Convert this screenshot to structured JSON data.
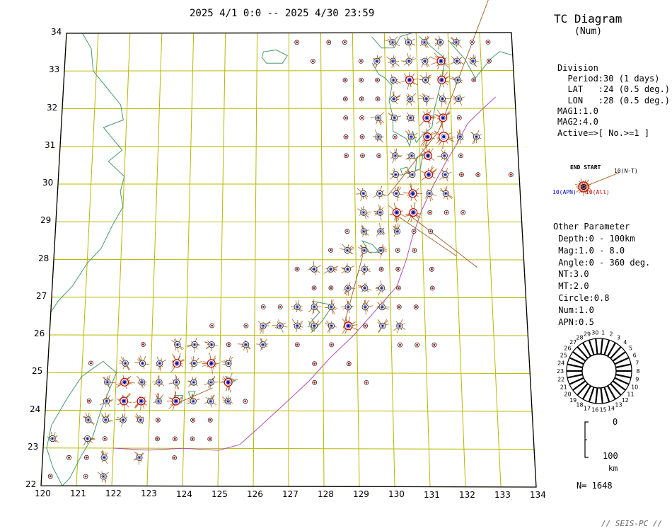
{
  "header": {
    "period": "2025 4/1 0:0 -- 2025 4/30 23:59",
    "title": "TC Diagram",
    "subtitle": "(Num)"
  },
  "map": {
    "lon_range": [
      120,
      134
    ],
    "lat_range": [
      22,
      34
    ],
    "lon_ticks": [
      "120",
      "121",
      "122",
      "123",
      "124",
      "125",
      "126",
      "127",
      "128",
      "129",
      "130",
      "131",
      "132",
      "133",
      "134"
    ],
    "lat_ticks": [
      "22",
      "23",
      "24",
      "25",
      "26",
      "27",
      "28",
      "29",
      "30",
      "31",
      "32",
      "33",
      "34"
    ],
    "grid_color": "#b8b800",
    "coast_color": "#4a9a6a",
    "trench_color": "#b050b0"
  },
  "division": {
    "heading": "Division",
    "lines": [
      "  Period:30 (1 days)",
      "  LAT   :24 (0.5 deg.)",
      "  LON   :28 (0.5 deg.)",
      "MAG1:1.0",
      "MAG2:4.0",
      "Active=>[ No.>=1 ]"
    ]
  },
  "sample_symbol": {
    "end_start": "END START",
    "nt_label": "10(N-T)",
    "apn_label": "10(APN)",
    "all_label": "10(All)",
    "apn_color": "#0000cc",
    "all_color": "#cc0000"
  },
  "other": {
    "heading": "Other Parameter",
    "lines": [
      " Depth:0 - 100km",
      " Mag:1.0 - 8.0",
      " Angle:0 - 360 deg.",
      " NT:3.0",
      " MT:2.0",
      " Circle:0.8",
      " Num:1.0",
      " APN:0.5"
    ]
  },
  "clock_legend": {
    "labels": [
      "1",
      "2",
      "3",
      "4",
      "5",
      "6",
      "7",
      "8",
      "9",
      "10",
      "11",
      "12",
      "13",
      "14",
      "15",
      "16",
      "17",
      "18",
      "19",
      "20",
      "21",
      "22",
      "23",
      "24",
      "25",
      "26",
      "27",
      "28",
      "29",
      "30"
    ]
  },
  "scale": {
    "top": "0",
    "bottom": "100",
    "unit": "km"
  },
  "total": "N= 1648",
  "footer": "// SEIS-PC //"
}
